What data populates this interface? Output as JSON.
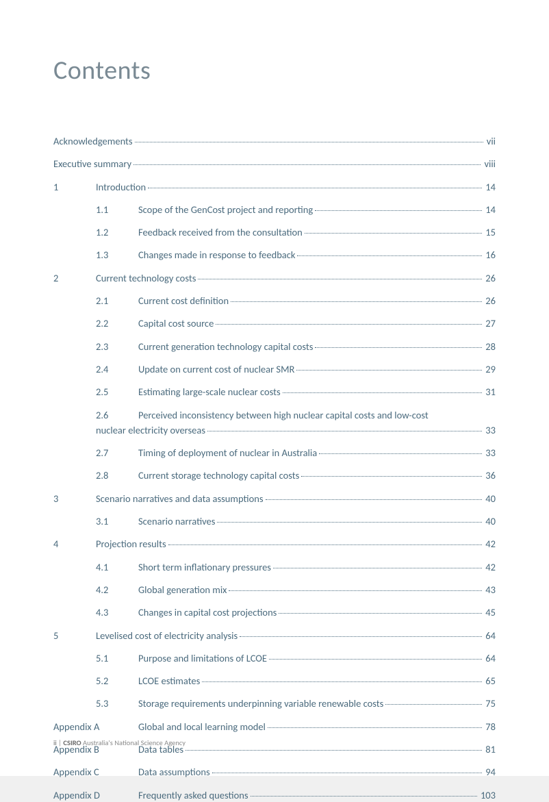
{
  "title": "Contents",
  "entries": [
    {
      "level": "level-0",
      "num": "",
      "text": "Acknowledgements",
      "page": "vii"
    },
    {
      "level": "level-0",
      "num": "",
      "text": "Executive summary",
      "page": "viii"
    },
    {
      "level": "level-1",
      "num": "1",
      "text": "Introduction",
      "page": "14"
    },
    {
      "level": "level-2",
      "num": "1.1",
      "text": "Scope of the GenCost project and reporting",
      "page": "14"
    },
    {
      "level": "level-2",
      "num": "1.2",
      "text": "Feedback received from the consultation",
      "page": "15"
    },
    {
      "level": "level-2",
      "num": "1.3",
      "text": "Changes made in response to feedback",
      "page": "16"
    },
    {
      "level": "level-1",
      "num": "2",
      "text": "Current technology costs",
      "page": "26"
    },
    {
      "level": "level-2",
      "num": "2.1",
      "text": "Current cost definition",
      "page": "26"
    },
    {
      "level": "level-2",
      "num": "2.2",
      "text": "Capital cost source",
      "page": "27"
    },
    {
      "level": "level-2",
      "num": "2.3",
      "text": "Current generation technology capital costs",
      "page": "28"
    },
    {
      "level": "level-2",
      "num": "2.4",
      "text": "Update on current cost of nuclear SMR",
      "page": "29"
    },
    {
      "level": "level-2",
      "num": "2.5",
      "text": "Estimating large-scale nuclear costs",
      "page": "31"
    },
    {
      "level": "level-2",
      "num": "2.6",
      "text": "Perceived inconsistency between high nuclear capital costs and low-cost",
      "wrap": "nuclear electricity overseas",
      "page": "33"
    },
    {
      "level": "level-2",
      "num": "2.7",
      "text": "Timing of deployment of nuclear in Australia",
      "page": "33"
    },
    {
      "level": "level-2",
      "num": "2.8",
      "text": "Current storage technology capital costs",
      "page": "36"
    },
    {
      "level": "level-1",
      "num": "3",
      "text": "Scenario narratives and data assumptions",
      "page": "40"
    },
    {
      "level": "level-2",
      "num": "3.1",
      "text": "Scenario narratives",
      "page": "40"
    },
    {
      "level": "level-1",
      "num": "4",
      "text": "Projection results",
      "page": "42"
    },
    {
      "level": "level-2",
      "num": "4.1",
      "text": "Short term inflationary pressures",
      "page": "42"
    },
    {
      "level": "level-2",
      "num": "4.2",
      "text": "Global generation mix",
      "page": "43"
    },
    {
      "level": "level-2",
      "num": "4.3",
      "text": "Changes in capital cost projections",
      "page": "45"
    },
    {
      "level": "level-1",
      "num": "5",
      "text": "Levelised cost of electricity analysis",
      "page": "64"
    },
    {
      "level": "level-2",
      "num": "5.1",
      "text": "Purpose and limitations of LCOE",
      "page": "64"
    },
    {
      "level": "level-2",
      "num": "5.2",
      "text": "LCOE estimates",
      "page": "65"
    },
    {
      "level": "level-2",
      "num": "5.3",
      "text": "Storage requirements underpinning variable renewable costs",
      "page": "75"
    },
    {
      "level": "level-appendix",
      "num": "Appendix A",
      "text": "Global and local learning model",
      "page": "78"
    },
    {
      "level": "level-appendix",
      "num": "Appendix B",
      "text": "Data tables",
      "page": "81"
    },
    {
      "level": "level-appendix",
      "num": "Appendix C",
      "text": "Data assumptions",
      "page": "94"
    },
    {
      "level": "level-appendix",
      "num": "Appendix D",
      "text": "Frequently asked questions",
      "page": "103"
    }
  ],
  "footer": {
    "page_num": "ii",
    "sep": "  |  ",
    "org": "CSIRO",
    "tagline": " Australia's National Science Agency"
  }
}
